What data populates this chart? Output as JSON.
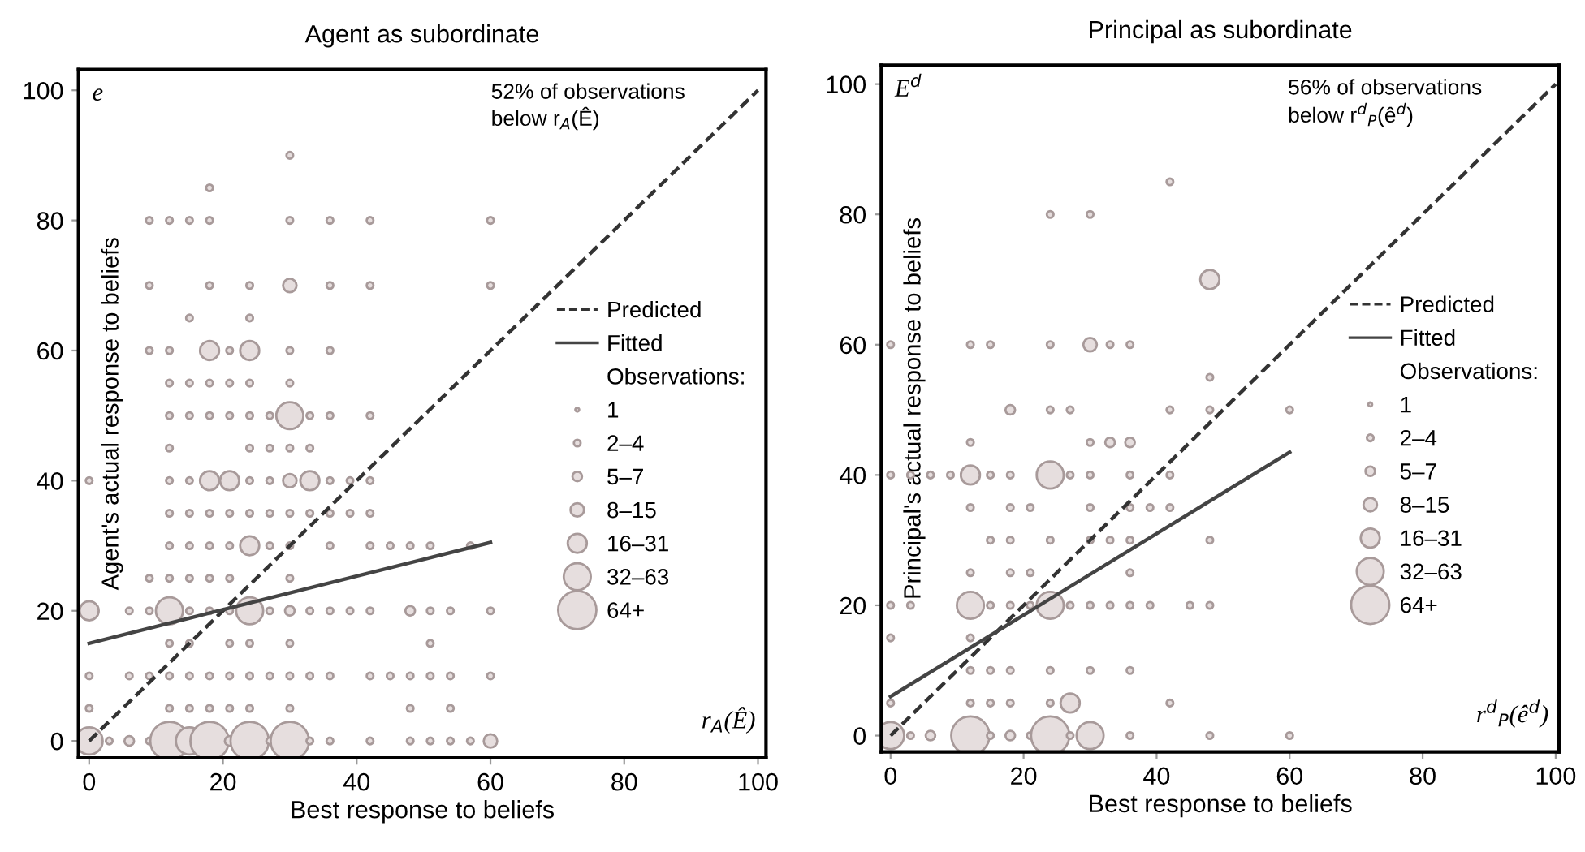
{
  "chart_data": [
    {
      "type": "bubble",
      "title": "Agent as subordinate",
      "xlabel": "Best response to beliefs",
      "ylabel": "Agent's actual response to beliefs",
      "legend_title": "Observations:",
      "annotations": [
        "e",
        "52% of observations\nbelow r$_{A}$(Ê)",
        "r$_{A}$(Ê)"
      ],
      "xlim": [
        -1.6,
        101.2
      ],
      "ylim": [
        -2.6,
        103.2
      ],
      "xticks": [
        0,
        20,
        40,
        60,
        80,
        100
      ],
      "yticks": [
        0,
        20,
        40,
        60,
        80,
        100
      ],
      "grid": false,
      "legend": "right",
      "size_legend": [
        {
          "value": 1,
          "label": "1"
        },
        {
          "value": 3,
          "label": "2–4"
        },
        {
          "value": 6,
          "label": "5–7"
        },
        {
          "value": 12,
          "label": "8–15"
        },
        {
          "value": 24,
          "label": "16–31"
        },
        {
          "value": 48,
          "label": "32–63"
        },
        {
          "value": 96,
          "label": "64+"
        }
      ],
      "series": [
        {
          "type": "line",
          "name": "Predicted",
          "color": "#333333",
          "line_style": "dashed",
          "x": [
            0,
            100
          ],
          "values": [
            0,
            100
          ]
        },
        {
          "type": "line",
          "name": "Fitted",
          "color": "#444444",
          "line_style": "solid",
          "x": [
            0,
            60
          ],
          "values": [
            15,
            30.5
          ]
        },
        {
          "marker": "circle",
          "color": "#a89a9a",
          "x": [
            0,
            3,
            6,
            9,
            12,
            15,
            18,
            21,
            24,
            27,
            30,
            33,
            36,
            42,
            48,
            51,
            54,
            57,
            60,
            0,
            12,
            15,
            18,
            21,
            24,
            30,
            48,
            54,
            0,
            6,
            9,
            12,
            15,
            18,
            21,
            24,
            27,
            30,
            33,
            36,
            42,
            45,
            48,
            51,
            54,
            60,
            12,
            15,
            21,
            24,
            30,
            51,
            0,
            6,
            9,
            12,
            15,
            18,
            21,
            24,
            27,
            30,
            33,
            36,
            39,
            42,
            48,
            51,
            54,
            60,
            9,
            12,
            15,
            18,
            21,
            30,
            12,
            15,
            18,
            21,
            24,
            27,
            30,
            36,
            42,
            45,
            48,
            51,
            57,
            12,
            15,
            18,
            21,
            24,
            27,
            30,
            33,
            36,
            39,
            42,
            0,
            12,
            15,
            18,
            21,
            24,
            27,
            30,
            33,
            36,
            39,
            42,
            12,
            24,
            27,
            30,
            33,
            12,
            15,
            18,
            21,
            24,
            27,
            30,
            33,
            36,
            42,
            12,
            15,
            18,
            21,
            24,
            30,
            9,
            12,
            18,
            21,
            24,
            30,
            36,
            15,
            24,
            9,
            18,
            24,
            30,
            36,
            42,
            60,
            9,
            12,
            15,
            18,
            30,
            36,
            42,
            60,
            18,
            30
          ],
          "values": [
            0,
            0,
            0,
            0,
            0,
            0,
            0,
            0,
            0,
            0,
            0,
            0,
            0,
            0,
            0,
            0,
            0,
            0,
            0,
            5,
            5,
            5,
            5,
            5,
            5,
            5,
            5,
            5,
            10,
            10,
            10,
            10,
            10,
            10,
            10,
            10,
            10,
            10,
            10,
            10,
            10,
            10,
            10,
            10,
            10,
            10,
            15,
            15,
            15,
            15,
            15,
            15,
            20,
            20,
            20,
            20,
            20,
            20,
            20,
            20,
            20,
            20,
            20,
            20,
            20,
            20,
            20,
            20,
            20,
            20,
            25,
            25,
            25,
            25,
            25,
            25,
            30,
            30,
            30,
            30,
            30,
            30,
            30,
            30,
            30,
            30,
            30,
            30,
            30,
            35,
            35,
            35,
            35,
            35,
            35,
            35,
            35,
            35,
            35,
            35,
            40,
            40,
            40,
            40,
            40,
            40,
            40,
            40,
            40,
            40,
            40,
            40,
            45,
            45,
            45,
            45,
            45,
            50,
            50,
            50,
            50,
            50,
            50,
            50,
            50,
            50,
            50,
            55,
            55,
            55,
            55,
            55,
            55,
            60,
            60,
            60,
            60,
            60,
            60,
            60,
            65,
            65,
            70,
            70,
            70,
            70,
            70,
            70,
            70,
            80,
            80,
            80,
            80,
            80,
            80,
            80,
            80,
            85,
            90
          ],
          "sizes": [
            48,
            3,
            6,
            3,
            96,
            48,
            96,
            6,
            96,
            3,
            96,
            3,
            3,
            3,
            3,
            3,
            3,
            3,
            12,
            3,
            3,
            3,
            3,
            3,
            3,
            3,
            3,
            3,
            3,
            3,
            3,
            3,
            3,
            3,
            3,
            3,
            3,
            3,
            3,
            3,
            3,
            3,
            3,
            3,
            3,
            3,
            3,
            3,
            3,
            3,
            3,
            3,
            24,
            3,
            3,
            48,
            3,
            3,
            3,
            48,
            3,
            6,
            3,
            3,
            3,
            3,
            6,
            3,
            3,
            3,
            3,
            3,
            3,
            3,
            3,
            3,
            3,
            3,
            3,
            3,
            24,
            3,
            3,
            3,
            3,
            3,
            3,
            3,
            3,
            3,
            3,
            3,
            3,
            3,
            3,
            3,
            3,
            3,
            3,
            3,
            3,
            3,
            3,
            24,
            24,
            3,
            3,
            12,
            24,
            3,
            3,
            3,
            3,
            3,
            3,
            3,
            3,
            3,
            3,
            3,
            3,
            3,
            3,
            48,
            3,
            3,
            3,
            3,
            3,
            3,
            3,
            3,
            3,
            3,
            3,
            24,
            3,
            24,
            3,
            3,
            3,
            3,
            3,
            3,
            3,
            12,
            3,
            3,
            3,
            3,
            3,
            3,
            3,
            3,
            3,
            3,
            3,
            3,
            3
          ]
        }
      ]
    },
    {
      "type": "bubble",
      "title": "Principal as subordinate",
      "xlabel": "Best response to beliefs",
      "ylabel": "Principal's actual response to beliefs",
      "legend_title": "Observations:",
      "annotations": [
        "E$^{d}$",
        "56% of observations\nbelow r$^{d}$$_{P}$(ê$^{d}$)",
        "r$^{d}$$_{P}$(ê$^{d}$)"
      ],
      "xlim": [
        -1.4,
        100.5
      ],
      "ylim": [
        -2.5,
        102.9
      ],
      "xticks": [
        0,
        20,
        40,
        60,
        80,
        100
      ],
      "yticks": [
        0,
        20,
        40,
        60,
        80,
        100
      ],
      "grid": false,
      "legend": "right",
      "size_legend": [
        {
          "value": 1,
          "label": "1"
        },
        {
          "value": 3,
          "label": "2–4"
        },
        {
          "value": 6,
          "label": "5–7"
        },
        {
          "value": 12,
          "label": "8–15"
        },
        {
          "value": 24,
          "label": "16–31"
        },
        {
          "value": 48,
          "label": "32–63"
        },
        {
          "value": 96,
          "label": "64+"
        }
      ],
      "series": [
        {
          "type": "line",
          "name": "Predicted",
          "color": "#333333",
          "line_style": "dashed",
          "x": [
            0,
            100
          ],
          "values": [
            0,
            100
          ]
        },
        {
          "type": "line",
          "name": "Fitted",
          "color": "#444444",
          "line_style": "solid",
          "x": [
            0,
            60
          ],
          "values": [
            6,
            43.5
          ]
        },
        {
          "marker": "circle",
          "color": "#a89a9a",
          "x": [
            0,
            3,
            6,
            12,
            15,
            18,
            21,
            24,
            27,
            30,
            36,
            48,
            60,
            0,
            12,
            15,
            18,
            24,
            27,
            42,
            12,
            15,
            18,
            24,
            30,
            36,
            0,
            12,
            0,
            3,
            12,
            15,
            18,
            21,
            24,
            27,
            30,
            33,
            36,
            39,
            45,
            48,
            12,
            18,
            21,
            36,
            15,
            18,
            24,
            30,
            33,
            36,
            48,
            12,
            18,
            21,
            30,
            36,
            39,
            42,
            0,
            3,
            6,
            9,
            12,
            15,
            18,
            24,
            27,
            30,
            36,
            42,
            12,
            30,
            33,
            36,
            18,
            24,
            27,
            42,
            48,
            60,
            48,
            0,
            12,
            15,
            24,
            30,
            33,
            36,
            48,
            24,
            30,
            42
          ],
          "values": [
            0,
            0,
            0,
            0,
            0,
            0,
            0,
            0,
            0,
            0,
            0,
            0,
            0,
            5,
            5,
            5,
            5,
            5,
            5,
            5,
            10,
            10,
            10,
            10,
            10,
            10,
            15,
            15,
            20,
            20,
            20,
            20,
            20,
            20,
            20,
            20,
            20,
            20,
            20,
            20,
            20,
            20,
            25,
            25,
            25,
            25,
            30,
            30,
            30,
            30,
            30,
            30,
            30,
            35,
            35,
            35,
            35,
            35,
            35,
            35,
            40,
            40,
            40,
            40,
            40,
            40,
            40,
            40,
            40,
            40,
            40,
            40,
            45,
            45,
            45,
            45,
            50,
            50,
            50,
            50,
            50,
            50,
            55,
            60,
            60,
            60,
            60,
            60,
            60,
            60,
            70,
            80,
            80,
            85
          ],
          "sizes": [
            48,
            3,
            6,
            96,
            3,
            6,
            3,
            96,
            3,
            48,
            3,
            3,
            3,
            3,
            3,
            3,
            3,
            3,
            24,
            3,
            3,
            3,
            3,
            3,
            3,
            3,
            3,
            3,
            3,
            3,
            48,
            3,
            3,
            3,
            48,
            3,
            3,
            3,
            3,
            3,
            3,
            3,
            3,
            3,
            3,
            3,
            3,
            3,
            3,
            3,
            3,
            3,
            3,
            3,
            3,
            3,
            3,
            3,
            3,
            3,
            3,
            3,
            3,
            3,
            24,
            3,
            3,
            48,
            3,
            3,
            3,
            3,
            3,
            3,
            6,
            6,
            6,
            3,
            3,
            3,
            3,
            3,
            3,
            3,
            3,
            3,
            3,
            12,
            3,
            3,
            24,
            3,
            3,
            3
          ]
        }
      ]
    }
  ]
}
